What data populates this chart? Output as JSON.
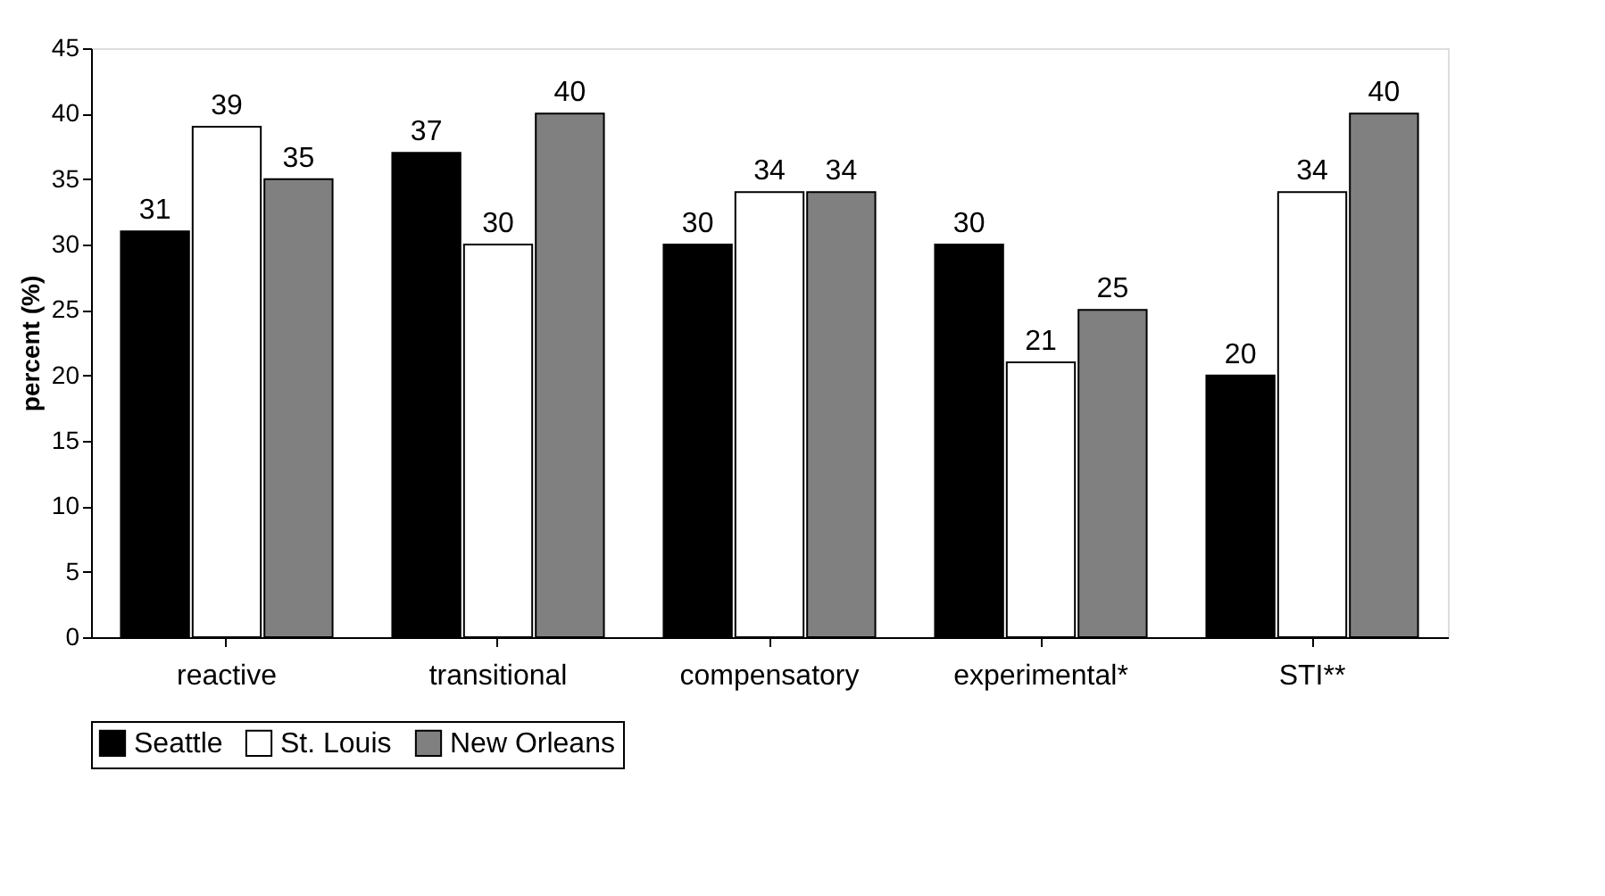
{
  "chart_data": {
    "type": "bar",
    "ylabel": "percent (%)",
    "categories": [
      "reactive",
      "transitional",
      "compensatory",
      "experimental*",
      "STI**"
    ],
    "series": [
      {
        "name": "Seattle",
        "color": "#000000",
        "values": [
          31,
          37,
          30,
          30,
          20
        ]
      },
      {
        "name": "St. Louis",
        "color": "#ffffff",
        "values": [
          39,
          30,
          34,
          21,
          34
        ]
      },
      {
        "name": "New Orleans",
        "color": "#808080",
        "values": [
          35,
          40,
          34,
          25,
          40
        ]
      }
    ],
    "ylim": [
      0,
      45
    ],
    "yticks": [
      0,
      5,
      10,
      15,
      20,
      25,
      30,
      35,
      40,
      45
    ],
    "grid": false,
    "legend": "bottom",
    "data_labels": true
  }
}
